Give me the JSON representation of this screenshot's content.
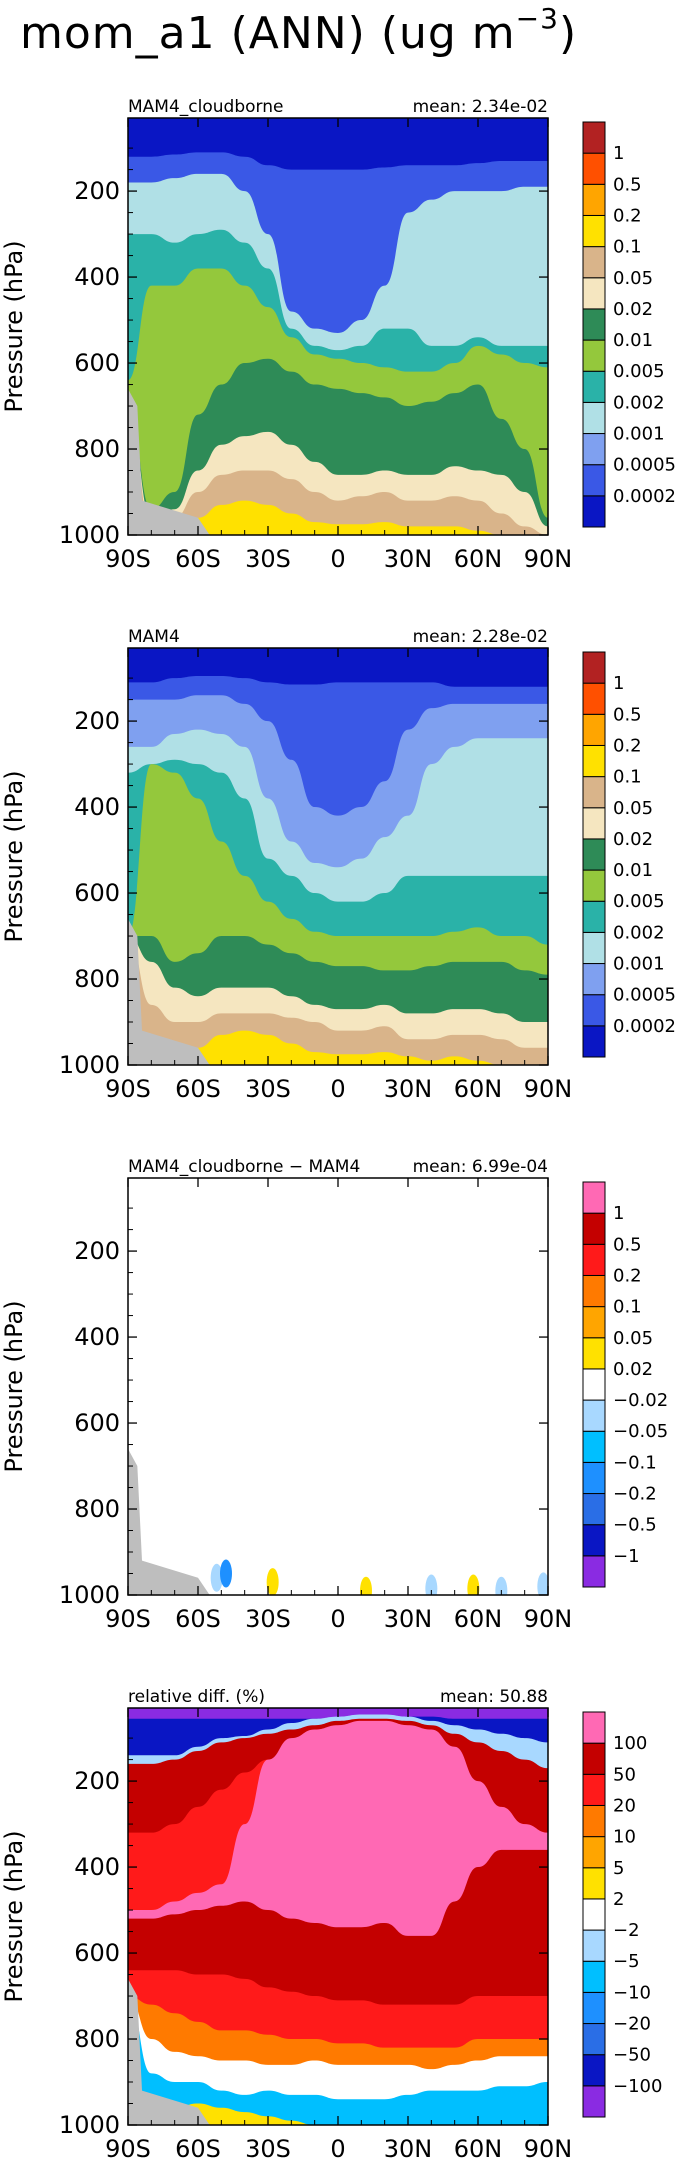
{
  "title": {
    "main": "mom_a1 (ANN) (ug m",
    "exp": "−3",
    "close": ")"
  },
  "chart_data": [
    {
      "type": "heatmap",
      "left_label": "MAM4_cloudborne",
      "right_label": "mean: 2.34e-02",
      "ylabel": "Pressure (hPa)",
      "xticks": [
        "90S",
        "60S",
        "30S",
        "0",
        "30N",
        "60N",
        "90N"
      ],
      "yticks": [
        "200",
        "400",
        "600",
        "800",
        "1000"
      ],
      "ylim": [
        1000,
        30
      ],
      "xlim": [
        -90,
        90
      ],
      "colorbar_labels": [
        "1",
        "0.5",
        "0.2",
        "0.1",
        "0.05",
        "0.02",
        "0.01",
        "0.005",
        "0.002",
        "0.001",
        "0.0005",
        "0.0002"
      ],
      "colors": [
        "#0a16c4",
        "#3a58e6",
        "#7fa0f0",
        "#b0e0e6",
        "#2ab2a8",
        "#94c83c",
        "#2e8b57",
        "#f5e6c0",
        "#d9b48a",
        "#ffe100",
        "#ffa500",
        "#ff5000",
        "#b22222"
      ]
    },
    {
      "type": "heatmap",
      "left_label": "MAM4",
      "right_label": "mean: 2.28e-02",
      "ylabel": "Pressure (hPa)",
      "xticks": [
        "90S",
        "60S",
        "30S",
        "0",
        "30N",
        "60N",
        "90N"
      ],
      "yticks": [
        "200",
        "400",
        "600",
        "800",
        "1000"
      ],
      "ylim": [
        1000,
        30
      ],
      "xlim": [
        -90,
        90
      ],
      "colorbar_labels": [
        "1",
        "0.5",
        "0.2",
        "0.1",
        "0.05",
        "0.02",
        "0.01",
        "0.005",
        "0.002",
        "0.001",
        "0.0005",
        "0.0002"
      ],
      "colors": [
        "#0a16c4",
        "#3a58e6",
        "#7fa0f0",
        "#b0e0e6",
        "#2ab2a8",
        "#94c83c",
        "#2e8b57",
        "#f5e6c0",
        "#d9b48a",
        "#ffe100",
        "#ffa500",
        "#ff5000",
        "#b22222"
      ]
    },
    {
      "type": "heatmap",
      "left_label": "MAM4_cloudborne − MAM4",
      "right_label": "mean: 6.99e-04",
      "ylabel": "Pressure (hPa)",
      "xticks": [
        "90S",
        "60S",
        "30S",
        "0",
        "30N",
        "60N",
        "90N"
      ],
      "yticks": [
        "200",
        "400",
        "600",
        "800",
        "1000"
      ],
      "ylim": [
        1000,
        30
      ],
      "xlim": [
        -90,
        90
      ],
      "colorbar_labels": [
        "1",
        "0.5",
        "0.2",
        "0.1",
        "0.05",
        "0.02",
        "−0.02",
        "−0.05",
        "−0.1",
        "−0.2",
        "−0.5",
        "−1"
      ],
      "colors": [
        "#8a2be2",
        "#0a16c4",
        "#2a6ee6",
        "#1e90ff",
        "#00bfff",
        "#a8d8ff",
        "#ffffff",
        "#ffe100",
        "#ffa500",
        "#ff7a00",
        "#ff1a1a",
        "#c40000",
        "#ff69b4"
      ]
    },
    {
      "type": "heatmap",
      "left_label": "relative diff. (%)",
      "right_label": "mean: 50.88",
      "ylabel": "Pressure (hPa)",
      "xticks": [
        "90S",
        "60S",
        "30S",
        "0",
        "30N",
        "60N",
        "90N"
      ],
      "yticks": [
        "200",
        "400",
        "600",
        "800",
        "1000"
      ],
      "ylim": [
        1000,
        30
      ],
      "xlim": [
        -90,
        90
      ],
      "colorbar_labels": [
        "100",
        "50",
        "20",
        "10",
        "5",
        "2",
        "−2",
        "−5",
        "−10",
        "−20",
        "−50",
        "−100"
      ],
      "colors": [
        "#8a2be2",
        "#0a16c4",
        "#2a6ee6",
        "#1e90ff",
        "#00bfff",
        "#a8d8ff",
        "#ffffff",
        "#ffe100",
        "#ffa500",
        "#ff7a00",
        "#ff1a1a",
        "#c40000",
        "#ff69b4"
      ]
    }
  ]
}
